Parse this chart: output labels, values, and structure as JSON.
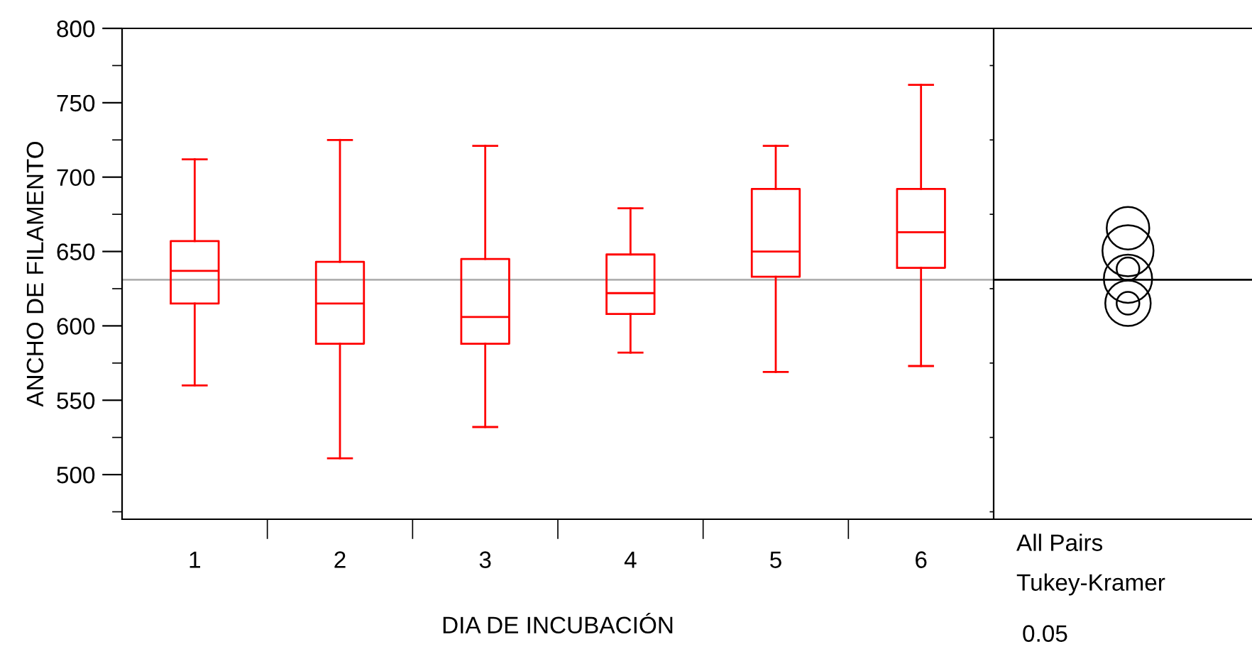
{
  "chart_data": {
    "type": "box",
    "xlabel": "DIA DE INCUBACIÓN",
    "ylabel": "ANCHO DE FILAMENTO",
    "categories": [
      "1",
      "2",
      "3",
      "4",
      "5",
      "6"
    ],
    "series": [
      {
        "color": "#ff0000",
        "boxes": [
          {
            "low": 560,
            "q1": 615,
            "median": 637,
            "q3": 657,
            "high": 712
          },
          {
            "low": 511,
            "q1": 588,
            "median": 615,
            "q3": 643,
            "high": 725
          },
          {
            "low": 532,
            "q1": 588,
            "median": 606,
            "q3": 645,
            "high": 721
          },
          {
            "low": 582,
            "q1": 608,
            "median": 622,
            "q3": 648,
            "high": 679
          },
          {
            "low": 569,
            "q1": 633,
            "median": 650,
            "q3": 692,
            "high": 721
          },
          {
            "low": 573,
            "q1": 639,
            "median": 663,
            "q3": 692,
            "high": 762
          }
        ]
      }
    ],
    "ylim": [
      470,
      800
    ],
    "yticks": [
      500,
      550,
      600,
      650,
      700,
      750,
      800
    ],
    "ref_lines": [
      {
        "axis": "y",
        "value": 631,
        "color": "#b0b0b0"
      }
    ],
    "annotations": [
      "All Pairs",
      "Tukey-Kramer",
      "0.05"
    ]
  }
}
